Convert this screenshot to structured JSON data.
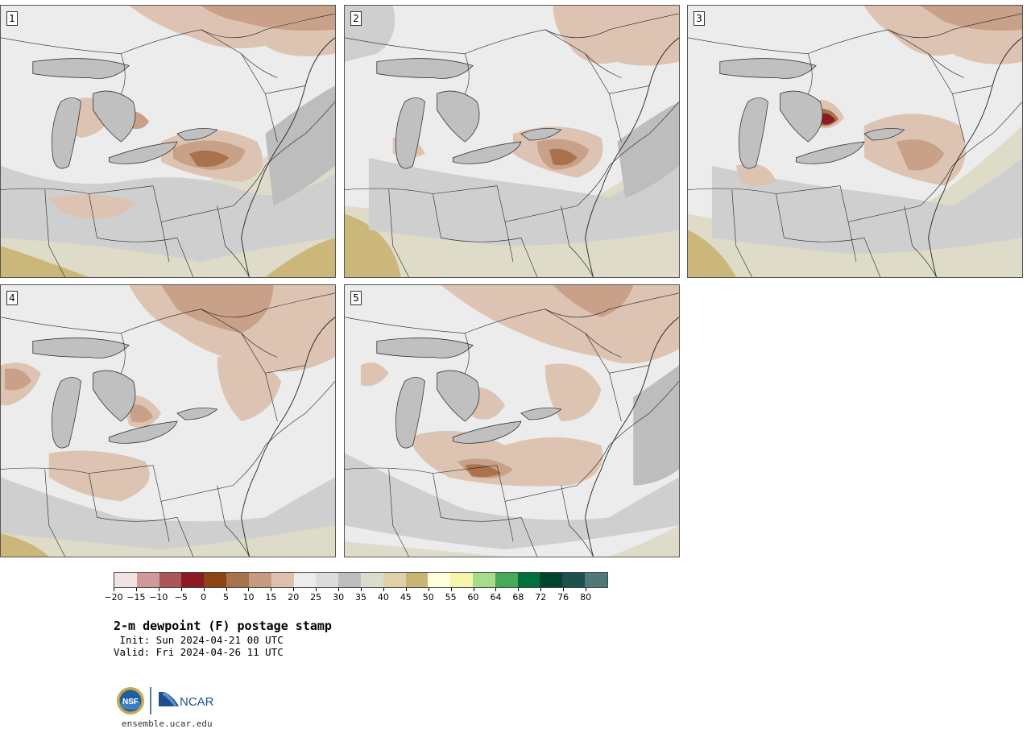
{
  "panels": [
    {
      "label": "1"
    },
    {
      "label": "2"
    },
    {
      "label": "3"
    },
    {
      "label": "4"
    },
    {
      "label": "5"
    }
  ],
  "colorbar": {
    "colors": [
      "#f3e2e2",
      "#cf9a9c",
      "#ad5659",
      "#8b1a22",
      "#8b4513",
      "#a8734c",
      "#c49a80",
      "#ddc0ae",
      "#ececec",
      "#dcdcdc",
      "#bebebe",
      "#dcdccc",
      "#e0d0a8",
      "#c9b474",
      "#ffffdc",
      "#f5f5aa",
      "#a8dc8c",
      "#46aa5a",
      "#00703c",
      "#00462e",
      "#1e5050",
      "#507878"
    ],
    "tick_labels": [
      "−20",
      "−15",
      "−10",
      "−5",
      "0",
      "5",
      "10",
      "15",
      "20",
      "25",
      "30",
      "35",
      "40",
      "45",
      "50",
      "55",
      "60",
      "64",
      "68",
      "72",
      "76",
      "80"
    ]
  },
  "title": "2-m dewpoint (F) postage stamp",
  "init_line": " Init: Sun 2024-04-21 00 UTC",
  "valid_line": "Valid: Fri 2024-04-26 11 UTC",
  "logos": {
    "nsf_text": "NSF",
    "ncar_text": "NCAR"
  },
  "site_url": "ensemble.ucar.edu",
  "map_colors": {
    "land_light": "#ececec",
    "gray_mid": "#cfcfcf",
    "gray_dark": "#bdbdbd",
    "tan_light": "#ddc4b2",
    "tan_mid": "#c9a088",
    "brown": "#a8734c",
    "dark_red": "#8b1a22",
    "khaki_light": "#dedcc8",
    "khaki": "#cbb77a",
    "lake": "#c0c0c0",
    "lines": "#222222"
  }
}
